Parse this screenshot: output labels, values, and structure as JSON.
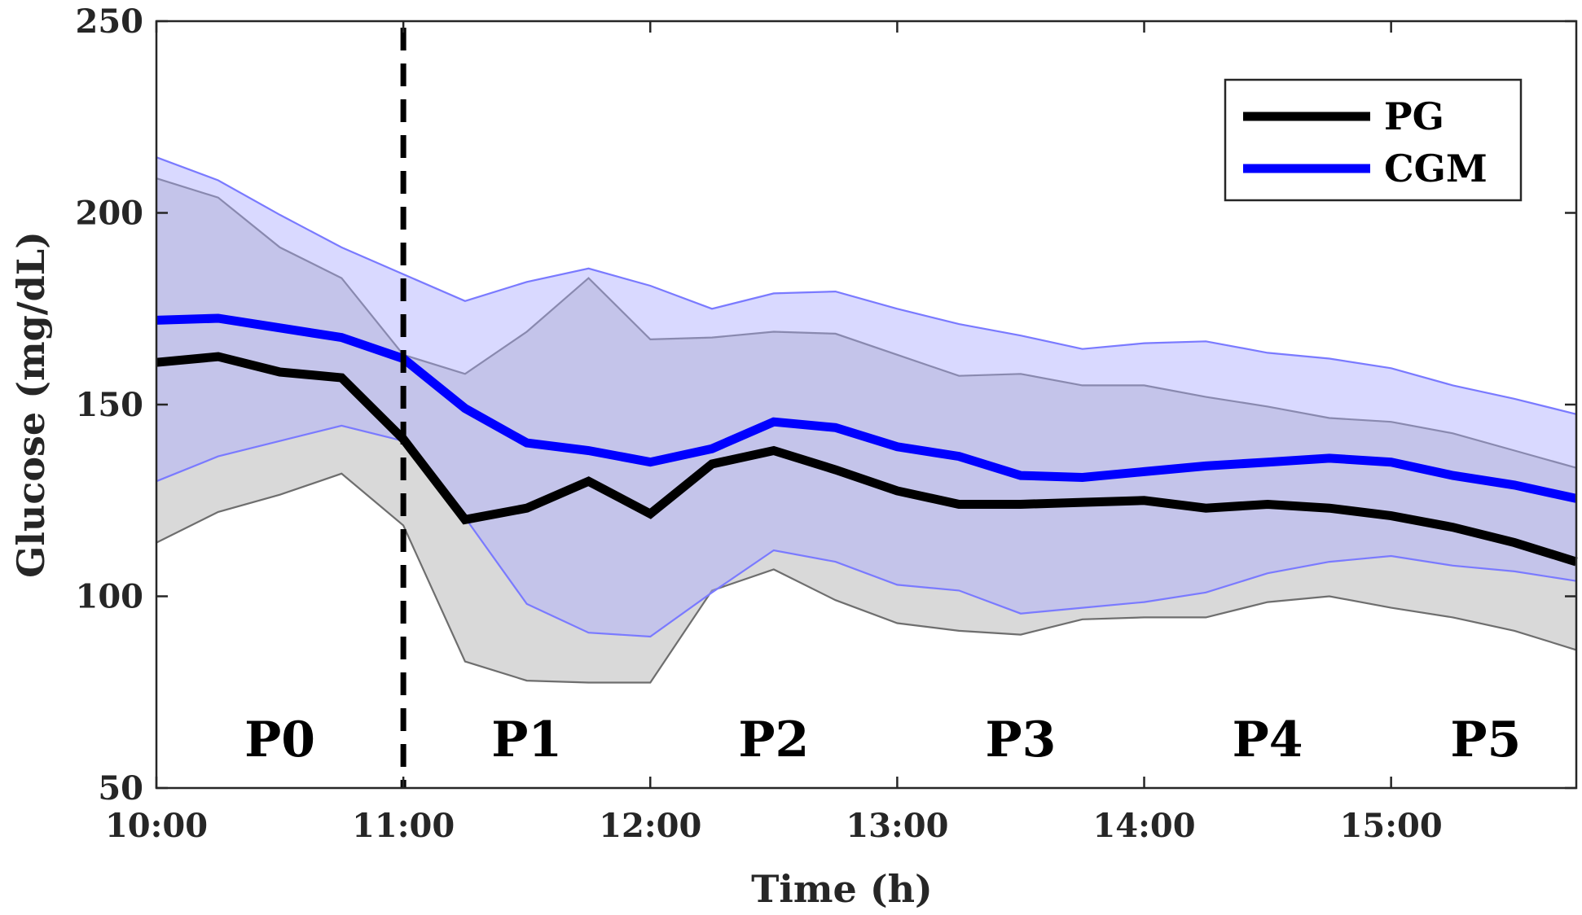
{
  "chart_data": {
    "type": "line",
    "xlabel": "Time (h)",
    "ylabel": "Glucose (mg/dL)",
    "ylim": [
      50,
      250
    ],
    "xlim": [
      "10:00",
      "15:45"
    ],
    "x_ticks": [
      "10:00",
      "11:00",
      "12:00",
      "13:00",
      "14:00",
      "15:00"
    ],
    "y_ticks": [
      50,
      100,
      150,
      200,
      250
    ],
    "grid": false,
    "legend_position": "top-right",
    "x": [
      "10:00",
      "10:15",
      "10:30",
      "10:45",
      "11:00",
      "11:15",
      "11:30",
      "11:45",
      "12:00",
      "12:15",
      "12:30",
      "12:45",
      "13:00",
      "13:15",
      "13:30",
      "13:45",
      "14:00",
      "14:15",
      "14:30",
      "14:45",
      "15:00",
      "15:15",
      "15:30",
      "15:45"
    ],
    "series": [
      {
        "name": "PG",
        "color": "#000000",
        "values": [
          161,
          162.5,
          158.5,
          157,
          141,
          120,
          123,
          130,
          121.5,
          134.5,
          138,
          133,
          127.5,
          124,
          124,
          124.5,
          125,
          123,
          124,
          123,
          121,
          118,
          114,
          109
        ],
        "band_upper": [
          209,
          204,
          191,
          183,
          163,
          158,
          169,
          183,
          167,
          167.5,
          169,
          168.5,
          163,
          157.5,
          158,
          155,
          155,
          152,
          149.5,
          146.5,
          145.5,
          142.5,
          138,
          133.5
        ],
        "band_lower": [
          114,
          122,
          126.5,
          132,
          118.5,
          83,
          78,
          77.5,
          77.5,
          101.5,
          107,
          99,
          93,
          91,
          90,
          94,
          94.5,
          94.5,
          98.5,
          100,
          97,
          94.5,
          91,
          86
        ],
        "band_color": "#b3b3b3"
      },
      {
        "name": "CGM",
        "color": "#0000ff",
        "values": [
          172,
          172.5,
          170,
          167.5,
          162,
          149,
          140,
          138,
          135,
          138.5,
          145.5,
          144,
          139,
          136.5,
          131.5,
          131,
          132.5,
          134,
          135,
          136,
          135,
          131.5,
          129,
          125.5
        ],
        "band_upper": [
          214.5,
          208.5,
          199.5,
          191,
          184,
          177,
          182,
          185.5,
          181,
          175,
          179,
          179.5,
          175,
          171,
          168,
          164.5,
          166,
          166.5,
          163.5,
          162,
          159.5,
          155,
          151.5,
          147.5
        ],
        "band_lower": [
          130,
          136.5,
          140.5,
          144.5,
          140.5,
          120.5,
          98,
          90.5,
          89.5,
          101,
          112,
          109,
          103,
          101.5,
          95.5,
          97,
          98.5,
          101,
          106,
          109,
          110.5,
          108,
          106.5,
          104
        ],
        "band_color": "#aaaaff"
      }
    ],
    "vline": {
      "x": "11:00",
      "style": "dashed",
      "color": "#000000"
    },
    "annotations": [
      {
        "text": "P0",
        "x": "10:30",
        "y": 60
      },
      {
        "text": "P1",
        "x": "11:30",
        "y": 60
      },
      {
        "text": "P2",
        "x": "12:30",
        "y": 60
      },
      {
        "text": "P3",
        "x": "13:30",
        "y": 60
      },
      {
        "text": "P4",
        "x": "14:30",
        "y": 60
      },
      {
        "text": "P5",
        "x": "15:23",
        "y": 60
      }
    ]
  }
}
